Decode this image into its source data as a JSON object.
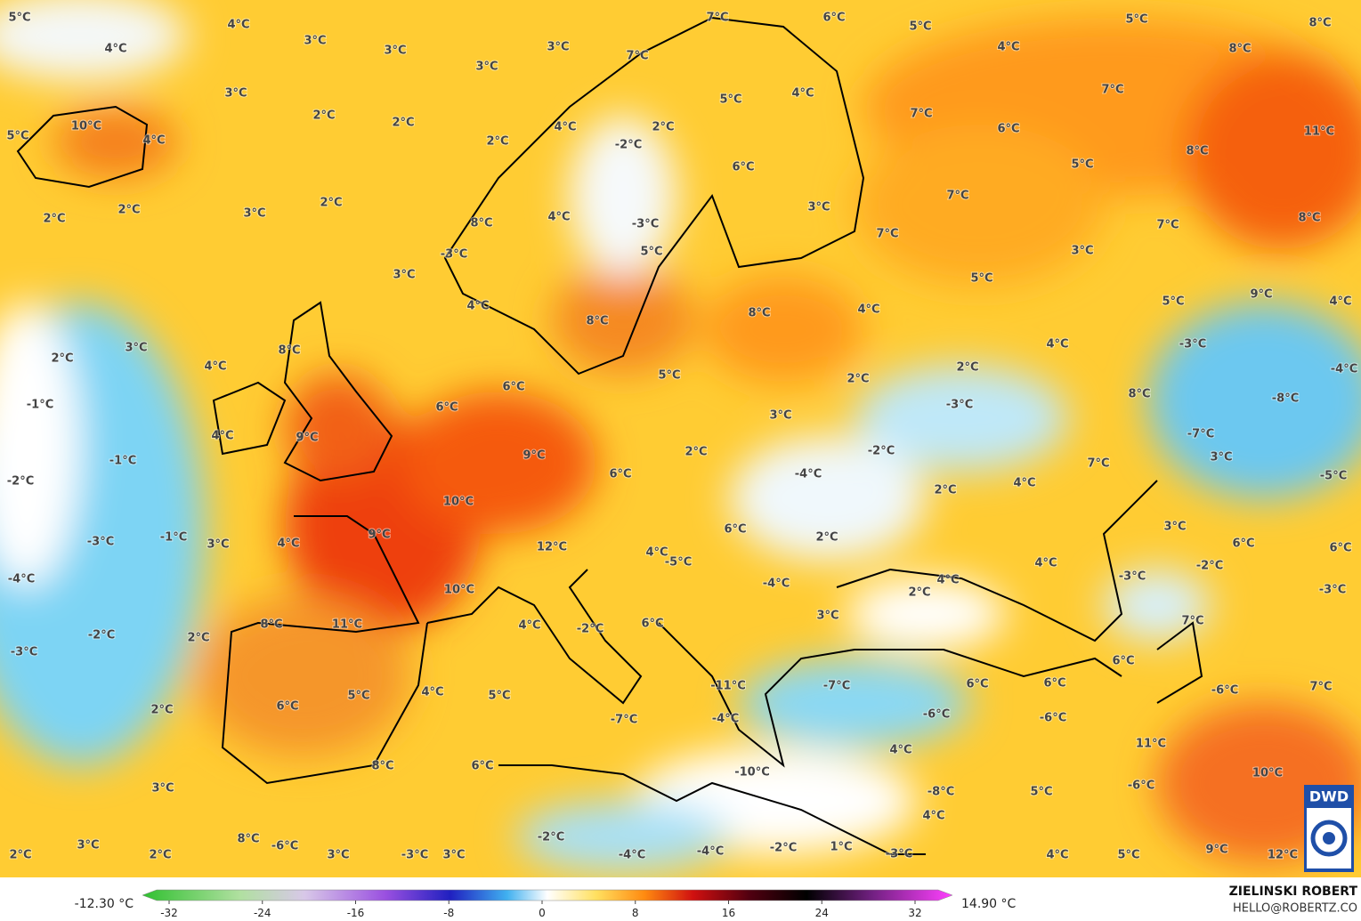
{
  "labels": [
    "5°C",
    "4°C",
    "3°C",
    "4°C",
    "3°C",
    "3°C",
    "3°C",
    "7°C",
    "6°C",
    "5°C",
    "5°C",
    "8°C",
    "8°C",
    "4°C",
    "7°C",
    "3°C",
    "7°C",
    "4°C",
    "5°C",
    "2°C",
    "2°C",
    "10°C",
    "4°C",
    "5°C",
    "2°C",
    "4°C",
    "2°C",
    "-2°C",
    "7°C",
    "6°C",
    "11°C",
    "8°C",
    "5°C",
    "6°C",
    "2°C",
    "2°C",
    "3°C",
    "2°C",
    "8°C",
    "4°C",
    "-3°C",
    "3°C",
    "7°C",
    "8°C",
    "7°C",
    "7°C",
    "-3°C",
    "5°C",
    "3°C",
    "3°C",
    "5°C",
    "4°C",
    "8°C",
    "5°C",
    "9°C",
    "4°C",
    "8°C",
    "4°C",
    "3°C",
    "2°C",
    "8°C",
    "4°C",
    "-3°C",
    "4°C",
    "5°C",
    "2°C",
    "-4°C",
    "2°C",
    "6°C",
    "8°C",
    "-8°C",
    "-1°C",
    "6°C",
    "-3°C",
    "3°C",
    "4°C",
    "9°C",
    "-7°C",
    "-1°C",
    "9°C",
    "2°C",
    "-2°C",
    "3°C",
    "7°C",
    "-5°C",
    "-2°C",
    "6°C",
    "-4°C",
    "4°C",
    "2°C",
    "10°C",
    "3°C",
    "-3°C",
    "-1°C",
    "3°C",
    "4°C",
    "9°C",
    "6°C",
    "2°C",
    "12°C",
    "6°C",
    "6°C",
    "4°C",
    "-5°C",
    "4°C",
    "-2°C",
    "-3°C",
    "-4°C",
    "10°C",
    "-4°C",
    "2°C",
    "4°C",
    "-3°C",
    "3°C",
    "7°C",
    "8°C",
    "11°C",
    "-2°C",
    "2°C",
    "4°C",
    "-2°C",
    "6°C",
    "-3°C",
    "6°C",
    "6°C",
    "6°C",
    "-6°C",
    "7°C",
    "-11°C",
    "-7°C",
    "5°C",
    "4°C",
    "5°C",
    "6°C",
    "2°C",
    "-6°C",
    "-6°C",
    "-4°C",
    "-7°C",
    "4°C",
    "11°C",
    "8°C",
    "6°C",
    "-10°C",
    "10°C",
    "3°C",
    "-8°C",
    "5°C",
    "-6°C",
    "4°C",
    "8°C",
    "-6°C",
    "3°C",
    "-2°C",
    "1°C",
    "-2°C",
    "-3°C",
    "2°C",
    "2°C",
    "3°C",
    "-3°C",
    "3°C",
    "-4°C",
    "-4°C",
    "4°C",
    "5°C",
    "9°C",
    "12°C"
  ],
  "colorbar": {
    "min_label": "-12.30 °C",
    "max_label": "14.90 °C",
    "ticks": [
      -32,
      -24,
      -16,
      -8,
      0,
      8,
      16,
      24,
      32
    ]
  },
  "credit": {
    "author": "ZIELINSKI ROBERT",
    "contact": "HELLO@ROBERTZ.CO",
    "logo": "DWD"
  }
}
